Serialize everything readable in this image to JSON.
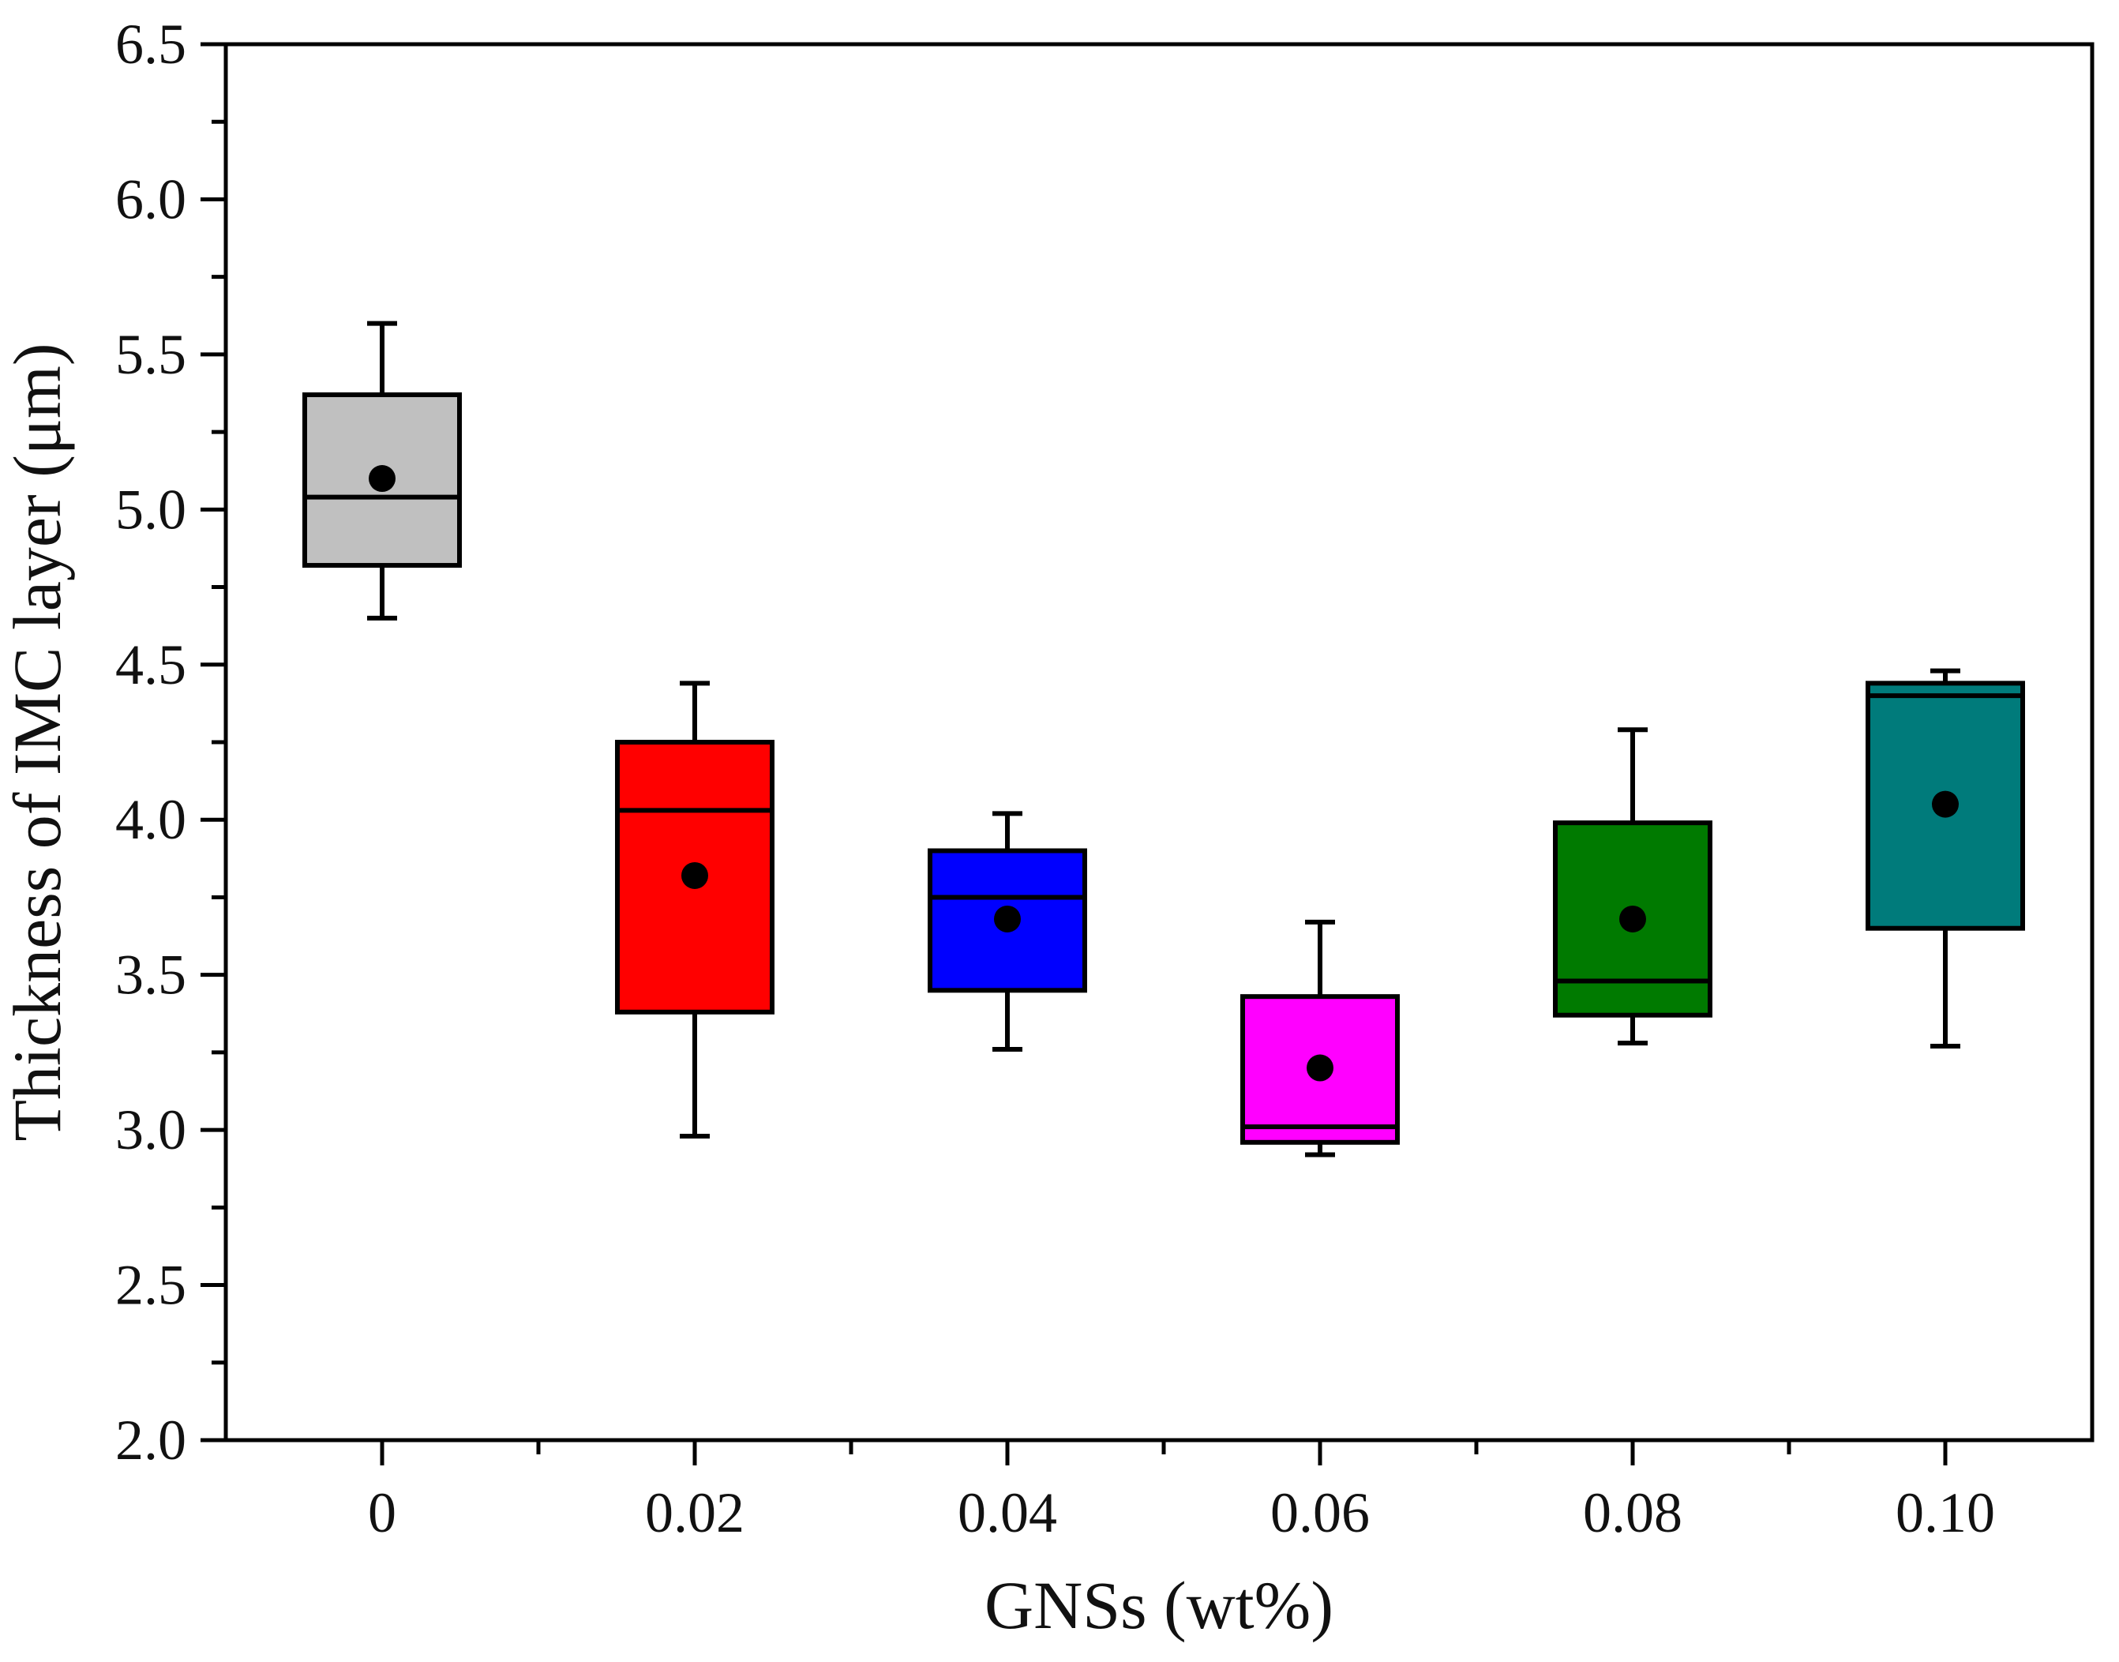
{
  "chart_data": {
    "type": "box",
    "xlabel": "GNSs (wt%)",
    "ylabel": "Thickness of IMC layer (μm)",
    "ylim": [
      2.0,
      6.5
    ],
    "y_ticks": [
      "2.0",
      "2.5",
      "3.0",
      "3.5",
      "4.0",
      "4.5",
      "5.0",
      "5.5",
      "6.0",
      "6.5"
    ],
    "categories": [
      "0",
      "0.02",
      "0.04",
      "0.06",
      "0.08",
      "0.10"
    ],
    "boxes": [
      {
        "category": "0",
        "whisker_low": 4.65,
        "q1": 4.82,
        "median": 5.04,
        "q3": 5.37,
        "whisker_high": 5.6,
        "mean": 5.1,
        "color": "#c0c0c0"
      },
      {
        "category": "0.02",
        "whisker_low": 2.98,
        "q1": 3.38,
        "median": 4.03,
        "q3": 4.25,
        "whisker_high": 4.44,
        "mean": 3.82,
        "color": "#ff0000"
      },
      {
        "category": "0.04",
        "whisker_low": 3.26,
        "q1": 3.45,
        "median": 3.75,
        "q3": 3.9,
        "whisker_high": 4.02,
        "mean": 3.68,
        "color": "#0000ff"
      },
      {
        "category": "0.06",
        "whisker_low": 2.92,
        "q1": 2.96,
        "median": 3.01,
        "q3": 3.43,
        "whisker_high": 3.67,
        "mean": 3.2,
        "color": "#ff00ff"
      },
      {
        "category": "0.08",
        "whisker_low": 3.28,
        "q1": 3.37,
        "median": 3.48,
        "q3": 3.99,
        "whisker_high": 4.29,
        "mean": 3.68,
        "color": "#007a00"
      },
      {
        "category": "0.10",
        "whisker_low": 3.27,
        "q1": 3.65,
        "median": 4.4,
        "q3": 4.44,
        "whisker_high": 4.48,
        "mean": 4.05,
        "color": "#007b7b"
      }
    ],
    "legend": "none",
    "grid": false
  }
}
